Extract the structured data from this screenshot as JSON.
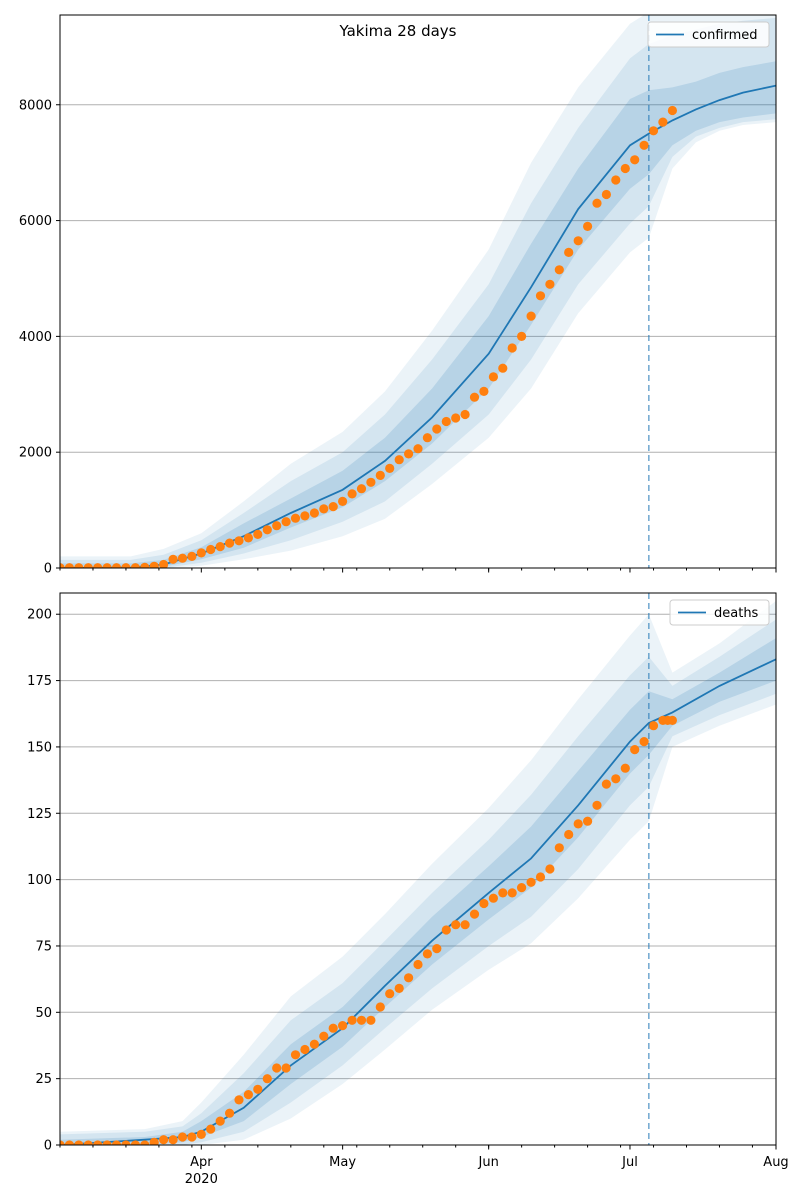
{
  "chart_data": [
    {
      "type": "line",
      "title": "Yakima 28 days",
      "legend": "top-right",
      "grid": "y",
      "ylim": [
        0,
        9550
      ],
      "yticks": [
        0,
        2000,
        4000,
        6000,
        8000
      ],
      "xlim": [
        "2020-03-02",
        "2020-08-01"
      ],
      "xticks": [
        {
          "date": "2020-04-01",
          "label": "Apr",
          "sublabel": "2020"
        },
        {
          "date": "2020-05-01",
          "label": "May"
        },
        {
          "date": "2020-06-01",
          "label": "Jun"
        },
        {
          "date": "2020-07-01",
          "label": "Jul"
        },
        {
          "date": "2020-08-01",
          "label": "Aug"
        }
      ],
      "forecast_start": "2020-07-05",
      "colors": {
        "line": "#1f77b4",
        "points": "#ff7f0e",
        "band": "#1f77b4"
      },
      "series": [
        {
          "name": "confirmed",
          "kind": "line",
          "x": [
            "2020-03-02",
            "2020-03-17",
            "2020-03-24",
            "2020-04-01",
            "2020-04-10",
            "2020-04-20",
            "2020-05-01",
            "2020-05-10",
            "2020-05-20",
            "2020-06-01",
            "2020-06-10",
            "2020-06-20",
            "2020-07-01",
            "2020-07-05",
            "2020-07-10",
            "2020-07-15",
            "2020-07-20",
            "2020-07-25",
            "2020-08-01"
          ],
          "y": [
            0,
            5,
            60,
            250,
            550,
            950,
            1350,
            1850,
            2600,
            3700,
            4850,
            6200,
            7300,
            7500,
            7730,
            7920,
            8080,
            8210,
            8330
          ]
        },
        {
          "name": "",
          "kind": "band",
          "x": [
            "2020-03-02",
            "2020-03-17",
            "2020-03-24",
            "2020-04-01",
            "2020-04-10",
            "2020-04-20",
            "2020-05-01",
            "2020-05-10",
            "2020-05-20",
            "2020-06-01",
            "2020-06-10",
            "2020-06-20",
            "2020-07-01",
            "2020-07-05",
            "2020-07-10",
            "2020-07-15",
            "2020-07-20",
            "2020-07-25",
            "2020-08-01"
          ],
          "lower": [
            0,
            0,
            20,
            150,
            350,
            700,
            1050,
            1500,
            2150,
            3100,
            4200,
            5500,
            6550,
            6800,
            7300,
            7550,
            7700,
            7780,
            7850
          ],
          "upper": [
            80,
            80,
            140,
            360,
            770,
            1200,
            1680,
            2250,
            3100,
            4350,
            5600,
            6900,
            8100,
            8250,
            8300,
            8400,
            8550,
            8650,
            8750
          ]
        },
        {
          "name": "",
          "kind": "band",
          "x": [
            "2020-03-02",
            "2020-03-17",
            "2020-03-24",
            "2020-04-01",
            "2020-04-10",
            "2020-04-20",
            "2020-05-01",
            "2020-05-10",
            "2020-05-20",
            "2020-06-01",
            "2020-06-10",
            "2020-06-20",
            "2020-07-01",
            "2020-07-05",
            "2020-07-10",
            "2020-07-15",
            "2020-07-20",
            "2020-07-25",
            "2020-08-01"
          ],
          "lower": [
            0,
            0,
            0,
            90,
            250,
            480,
            800,
            1150,
            1800,
            2650,
            3600,
            4900,
            5950,
            6250,
            7100,
            7450,
            7600,
            7700,
            7750
          ],
          "upper": [
            140,
            140,
            230,
            480,
            950,
            1500,
            2000,
            2650,
            3600,
            4900,
            6300,
            7600,
            8800,
            9050,
            9200,
            9300,
            9400,
            9450,
            9500
          ]
        },
        {
          "name": "",
          "kind": "band",
          "x": [
            "2020-03-02",
            "2020-03-17",
            "2020-03-24",
            "2020-04-01",
            "2020-04-10",
            "2020-04-20",
            "2020-05-01",
            "2020-05-10",
            "2020-05-20",
            "2020-06-01",
            "2020-06-10",
            "2020-06-20",
            "2020-07-01",
            "2020-07-05",
            "2020-07-10",
            "2020-07-15",
            "2020-07-20",
            "2020-07-25",
            "2020-08-01"
          ],
          "lower": [
            0,
            0,
            0,
            40,
            150,
            300,
            550,
            850,
            1450,
            2250,
            3100,
            4400,
            5450,
            5700,
            6900,
            7350,
            7550,
            7650,
            7700
          ],
          "upper": [
            200,
            200,
            330,
            600,
            1150,
            1800,
            2350,
            3050,
            4100,
            5500,
            7000,
            8300,
            9400,
            9600,
            9700,
            9700,
            9700,
            9700,
            9700
          ]
        },
        {
          "name": "",
          "kind": "scatter",
          "x": [
            "2020-03-02",
            "2020-03-04",
            "2020-03-06",
            "2020-03-08",
            "2020-03-10",
            "2020-03-12",
            "2020-03-14",
            "2020-03-16",
            "2020-03-18",
            "2020-03-20",
            "2020-03-22",
            "2020-03-24",
            "2020-03-26",
            "2020-03-28",
            "2020-03-30",
            "2020-04-01",
            "2020-04-03",
            "2020-04-05",
            "2020-04-07",
            "2020-04-09",
            "2020-04-11",
            "2020-04-13",
            "2020-04-15",
            "2020-04-17",
            "2020-04-19",
            "2020-04-21",
            "2020-04-23",
            "2020-04-25",
            "2020-04-27",
            "2020-04-29",
            "2020-05-01",
            "2020-05-03",
            "2020-05-05",
            "2020-05-07",
            "2020-05-09",
            "2020-05-11",
            "2020-05-13",
            "2020-05-15",
            "2020-05-17",
            "2020-05-19",
            "2020-05-21",
            "2020-05-23",
            "2020-05-25",
            "2020-05-27",
            "2020-05-29",
            "2020-05-31",
            "2020-06-02",
            "2020-06-04",
            "2020-06-06",
            "2020-06-08",
            "2020-06-10",
            "2020-06-12",
            "2020-06-14",
            "2020-06-16",
            "2020-06-18",
            "2020-06-20",
            "2020-06-22",
            "2020-06-24",
            "2020-06-26",
            "2020-06-28",
            "2020-06-30",
            "2020-07-02",
            "2020-07-04",
            "2020-07-06",
            "2020-07-08",
            "2020-07-10"
          ],
          "y": [
            5,
            5,
            5,
            5,
            5,
            5,
            5,
            5,
            5,
            10,
            30,
            60,
            150,
            170,
            200,
            260,
            320,
            370,
            430,
            470,
            520,
            580,
            660,
            730,
            800,
            860,
            900,
            950,
            1020,
            1060,
            1150,
            1280,
            1370,
            1480,
            1600,
            1720,
            1870,
            1970,
            2060,
            2250,
            2400,
            2530,
            2590,
            2650,
            2950,
            3050,
            3300,
            3450,
            3800,
            4000,
            4350,
            4700,
            4900,
            5150,
            5450,
            5650,
            5900,
            6300,
            6450,
            6700,
            6900,
            7050,
            7300,
            7550,
            7700,
            7900
          ]
        }
      ]
    },
    {
      "type": "line",
      "title": "",
      "legend": "top-right",
      "grid": "y",
      "ylim": [
        0,
        208
      ],
      "yticks": [
        0,
        25,
        50,
        75,
        100,
        125,
        150,
        175,
        200
      ],
      "xlim": [
        "2020-03-02",
        "2020-08-01"
      ],
      "xticks": [
        {
          "date": "2020-04-01",
          "label": "Apr",
          "sublabel": "2020"
        },
        {
          "date": "2020-05-01",
          "label": "May"
        },
        {
          "date": "2020-06-01",
          "label": "Jun"
        },
        {
          "date": "2020-07-01",
          "label": "Jul"
        },
        {
          "date": "2020-08-01",
          "label": "Aug"
        }
      ],
      "forecast_start": "2020-07-05",
      "colors": {
        "line": "#1f77b4",
        "points": "#ff7f0e",
        "band": "#1f77b4"
      },
      "series": [
        {
          "name": "deaths",
          "kind": "line",
          "x": [
            "2020-03-02",
            "2020-03-20",
            "2020-03-28",
            "2020-04-01",
            "2020-04-10",
            "2020-04-20",
            "2020-05-01",
            "2020-05-10",
            "2020-05-20",
            "2020-06-01",
            "2020-06-10",
            "2020-06-20",
            "2020-07-01",
            "2020-07-05",
            "2020-07-10",
            "2020-07-20",
            "2020-08-01"
          ],
          "y": [
            0,
            2,
            3,
            5,
            14,
            30,
            44,
            60,
            77,
            95,
            108,
            128,
            152,
            159,
            163,
            173,
            183
          ]
        },
        {
          "name": "",
          "kind": "band",
          "x": [
            "2020-03-02",
            "2020-03-20",
            "2020-03-28",
            "2020-04-01",
            "2020-04-10",
            "2020-04-20",
            "2020-05-01",
            "2020-05-10",
            "2020-05-20",
            "2020-06-01",
            "2020-06-10",
            "2020-06-20",
            "2020-07-01",
            "2020-07-05",
            "2020-07-10",
            "2020-07-20",
            "2020-08-01"
          ],
          "lower": [
            0,
            0,
            1,
            3,
            9,
            23,
            37,
            52,
            68,
            85,
            97,
            116,
            140,
            147,
            158,
            167,
            175
          ],
          "upper": [
            2,
            3,
            5,
            9,
            20,
            38,
            52,
            68,
            86,
            105,
            120,
            141,
            164,
            171,
            168,
            178,
            191
          ]
        },
        {
          "name": "",
          "kind": "band",
          "x": [
            "2020-03-02",
            "2020-03-20",
            "2020-03-28",
            "2020-04-01",
            "2020-04-10",
            "2020-04-20",
            "2020-05-01",
            "2020-05-10",
            "2020-05-20",
            "2020-06-01",
            "2020-06-10",
            "2020-06-20",
            "2020-07-01",
            "2020-07-05",
            "2020-07-10",
            "2020-07-20",
            "2020-08-01"
          ],
          "lower": [
            0,
            0,
            0,
            1,
            5,
            16,
            30,
            44,
            59,
            75,
            86,
            104,
            128,
            135,
            154,
            162,
            170
          ],
          "upper": [
            4,
            5,
            7,
            12,
            27,
            47,
            61,
            77,
            95,
            115,
            132,
            154,
            177,
            184,
            173,
            184,
            198
          ]
        },
        {
          "name": "",
          "kind": "band",
          "x": [
            "2020-03-02",
            "2020-03-20",
            "2020-03-28",
            "2020-04-01",
            "2020-04-10",
            "2020-04-20",
            "2020-05-01",
            "2020-05-10",
            "2020-05-20",
            "2020-06-01",
            "2020-06-10",
            "2020-06-20",
            "2020-07-01",
            "2020-07-05",
            "2020-07-10",
            "2020-07-20",
            "2020-08-01"
          ],
          "lower": [
            0,
            0,
            0,
            0,
            2,
            10,
            23,
            36,
            51,
            66,
            76,
            93,
            115,
            122,
            150,
            158,
            166
          ],
          "upper": [
            5,
            6,
            9,
            16,
            34,
            56,
            71,
            87,
            106,
            127,
            145,
            168,
            192,
            200,
            178,
            189,
            205
          ]
        },
        {
          "name": "",
          "kind": "scatter",
          "x": [
            "2020-03-02",
            "2020-03-04",
            "2020-03-06",
            "2020-03-08",
            "2020-03-10",
            "2020-03-12",
            "2020-03-14",
            "2020-03-16",
            "2020-03-18",
            "2020-03-20",
            "2020-03-22",
            "2020-03-24",
            "2020-03-26",
            "2020-03-28",
            "2020-03-30",
            "2020-04-01",
            "2020-04-03",
            "2020-04-05",
            "2020-04-07",
            "2020-04-09",
            "2020-04-11",
            "2020-04-13",
            "2020-04-15",
            "2020-04-17",
            "2020-04-19",
            "2020-04-21",
            "2020-04-23",
            "2020-04-25",
            "2020-04-27",
            "2020-04-29",
            "2020-05-01",
            "2020-05-03",
            "2020-05-05",
            "2020-05-07",
            "2020-05-09",
            "2020-05-11",
            "2020-05-13",
            "2020-05-15",
            "2020-05-17",
            "2020-05-19",
            "2020-05-21",
            "2020-05-23",
            "2020-05-25",
            "2020-05-27",
            "2020-05-29",
            "2020-05-31",
            "2020-06-02",
            "2020-06-04",
            "2020-06-06",
            "2020-06-08",
            "2020-06-10",
            "2020-06-12",
            "2020-06-14",
            "2020-06-16",
            "2020-06-18",
            "2020-06-20",
            "2020-06-22",
            "2020-06-24",
            "2020-06-26",
            "2020-06-28",
            "2020-06-30",
            "2020-07-02",
            "2020-07-04",
            "2020-07-06",
            "2020-07-08",
            "2020-07-09",
            "2020-07-10"
          ],
          "y": [
            0,
            0,
            0,
            0,
            0,
            0,
            0,
            0,
            0,
            0,
            1,
            2,
            2,
            3,
            3,
            4,
            6,
            9,
            12,
            17,
            19,
            21,
            25,
            29,
            29,
            34,
            36,
            38,
            41,
            44,
            45,
            47,
            47,
            47,
            52,
            57,
            59,
            63,
            68,
            72,
            74,
            81,
            83,
            83,
            87,
            91,
            93,
            95,
            95,
            97,
            99,
            101,
            104,
            112,
            117,
            121,
            122,
            128,
            136,
            138,
            142,
            149,
            152,
            158,
            160,
            160,
            160
          ]
        }
      ]
    }
  ],
  "panels": [
    {
      "legend_label": "confirmed"
    },
    {
      "legend_label": "deaths"
    }
  ]
}
